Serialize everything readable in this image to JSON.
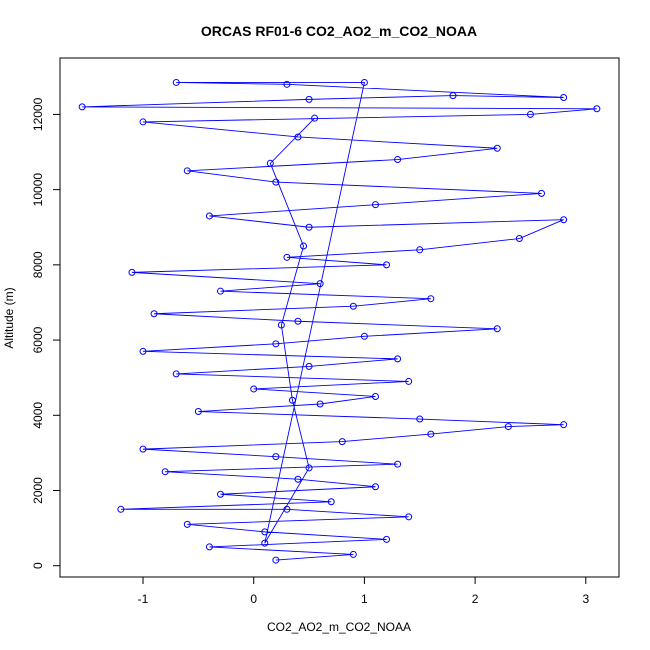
{
  "chart_data": {
    "type": "scatter",
    "title": "ORCAS RF01-6 CO2_AO2_m_CO2_NOAA",
    "xlabel": "CO2_AO2_m_CO2_NOAA",
    "ylabel": "Altitude (m)",
    "xlim": [
      -1.75,
      3.3
    ],
    "ylim": [
      -300,
      13500
    ],
    "xticks": [
      -1,
      0,
      1,
      2,
      3
    ],
    "yticks": [
      0,
      2000,
      4000,
      6000,
      8000,
      10000,
      12000
    ],
    "grid": false,
    "legend": "none",
    "series_color": "#0000ff",
    "marker": "open-circle",
    "connect_points": true,
    "series": [
      {
        "values": [
          [
            0.2,
            150
          ],
          [
            0.9,
            300
          ],
          [
            -0.4,
            500
          ],
          [
            1.2,
            700
          ],
          [
            0.1,
            900
          ],
          [
            -0.6,
            1100
          ],
          [
            1.4,
            1300
          ],
          [
            0.3,
            1500
          ],
          [
            -1.2,
            1500
          ],
          [
            0.7,
            1700
          ],
          [
            -0.3,
            1900
          ],
          [
            1.1,
            2100
          ],
          [
            0.4,
            2300
          ],
          [
            -0.8,
            2500
          ],
          [
            1.3,
            2700
          ],
          [
            0.2,
            2900
          ],
          [
            -1.0,
            3100
          ],
          [
            0.8,
            3300
          ],
          [
            1.6,
            3500
          ],
          [
            2.3,
            3700
          ],
          [
            2.8,
            3750
          ],
          [
            1.5,
            3900
          ],
          [
            -0.5,
            4100
          ],
          [
            0.6,
            4300
          ],
          [
            1.1,
            4500
          ],
          [
            0.0,
            4700
          ],
          [
            1.4,
            4900
          ],
          [
            -0.7,
            5100
          ],
          [
            0.5,
            5300
          ],
          [
            1.3,
            5500
          ],
          [
            -1.0,
            5700
          ],
          [
            0.2,
            5900
          ],
          [
            1.0,
            6100
          ],
          [
            2.2,
            6300
          ],
          [
            0.4,
            6500
          ],
          [
            -0.9,
            6700
          ],
          [
            0.9,
            6900
          ],
          [
            1.6,
            7100
          ],
          [
            -0.3,
            7300
          ],
          [
            0.6,
            7500
          ],
          [
            -1.1,
            7800
          ],
          [
            1.2,
            8000
          ],
          [
            0.3,
            8200
          ],
          [
            1.5,
            8400
          ],
          [
            2.4,
            8700
          ],
          [
            2.8,
            9200
          ],
          [
            0.5,
            9000
          ],
          [
            -0.4,
            9300
          ],
          [
            1.1,
            9600
          ],
          [
            2.6,
            9900
          ],
          [
            0.2,
            10200
          ],
          [
            -0.6,
            10500
          ],
          [
            1.3,
            10800
          ],
          [
            2.2,
            11100
          ],
          [
            0.4,
            11400
          ],
          [
            -1.0,
            11800
          ],
          [
            2.5,
            12000
          ],
          [
            3.1,
            12150
          ],
          [
            -1.55,
            12200
          ],
          [
            0.5,
            12400
          ],
          [
            1.8,
            12500
          ],
          [
            2.8,
            12450
          ],
          [
            0.3,
            12800
          ],
          [
            -0.7,
            12850
          ],
          [
            1.0,
            12850
          ],
          [
            0.1,
            600
          ],
          [
            0.5,
            2600
          ],
          [
            0.35,
            4400
          ],
          [
            0.25,
            6400
          ],
          [
            0.45,
            8500
          ],
          [
            0.15,
            10700
          ],
          [
            0.55,
            11900
          ]
        ]
      }
    ]
  }
}
